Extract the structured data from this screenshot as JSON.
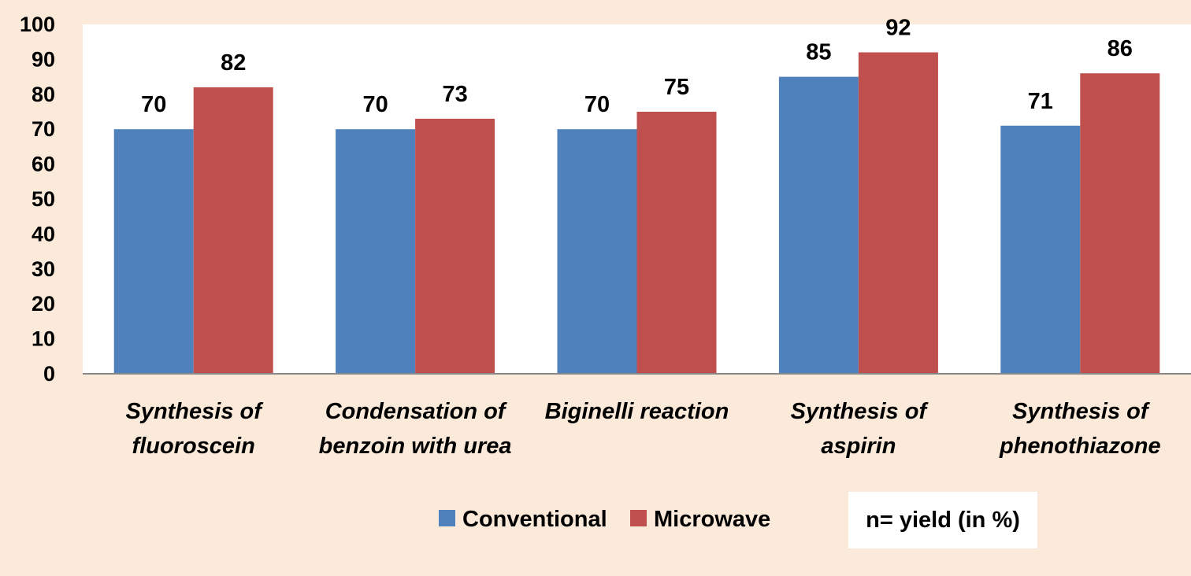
{
  "chart_data": {
    "type": "bar",
    "categories": [
      [
        "Synthesis of",
        "fluoroscein"
      ],
      [
        "Condensation of",
        "benzoin with urea"
      ],
      [
        "Biginelli reaction"
      ],
      [
        "Synthesis of",
        "aspirin"
      ],
      [
        "Synthesis of",
        "phenothiazone"
      ]
    ],
    "series": [
      {
        "name": "Conventional",
        "color": "#4f81bd",
        "values": [
          70,
          70,
          70,
          85,
          71
        ]
      },
      {
        "name": "Microwave",
        "color": "#c0504d",
        "values": [
          82,
          73,
          75,
          92,
          86
        ]
      }
    ],
    "ylim": [
      0,
      100
    ],
    "yticks": [
      0,
      10,
      20,
      30,
      40,
      50,
      60,
      70,
      80,
      90,
      100
    ],
    "legend_position": "bottom",
    "grid": false,
    "note": "n= yield (in %)"
  }
}
